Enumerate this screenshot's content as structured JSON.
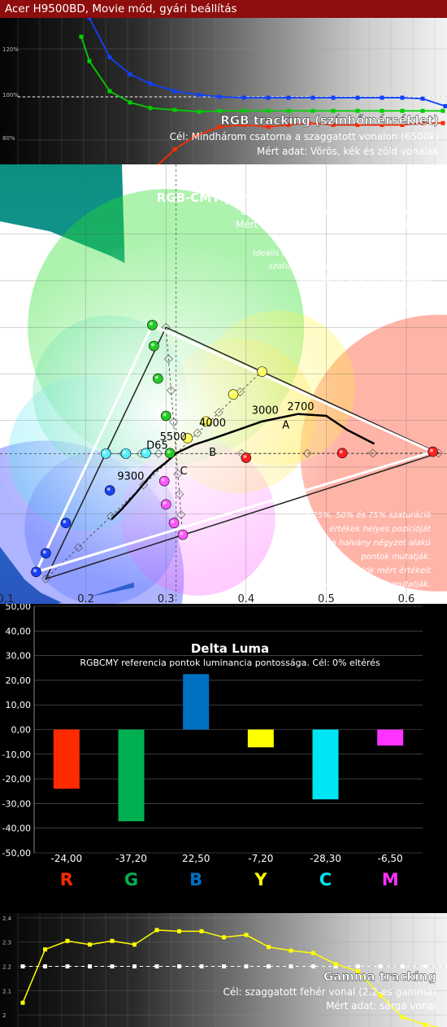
{
  "header": {
    "title": "Acer H9500BD, Movie mód, gyári beállítás"
  },
  "colors": {
    "red": "#ff2a00",
    "green": "#00b050",
    "blue": "#0070c0",
    "yellow": "#ffff00",
    "cyan": "#00e5f5",
    "magenta": "#ff33ff",
    "header_bg": "#8e0d0d"
  },
  "rgb_tracking": {
    "title": "RGB tracking (színhőmérséklet)",
    "line1": "Cél: Mindhárom csatorna a szaggatott vonalon (6500k)",
    "line2": "Mért adat: Vörös, kék és zöld vonalak",
    "y_ticks": [
      "120%",
      "100%",
      "80%"
    ],
    "chart_data": {
      "type": "line",
      "ylim": [
        72,
        150
      ],
      "target": 100,
      "series": [
        {
          "name": "Vörös",
          "color": "#ff2a00",
          "points": [
            [
              190,
              70
            ],
            [
              215,
              80
            ],
            [
              240,
              87
            ],
            [
              270,
              92
            ],
            [
              300,
              93
            ],
            [
              330,
              92
            ],
            [
              355,
              93
            ],
            [
              380,
              94
            ],
            [
              410,
              93
            ],
            [
              440,
              93
            ],
            [
              470,
              93
            ],
            [
              495,
              93
            ],
            [
              520,
              94
            ],
            [
              545,
              94
            ]
          ]
        },
        {
          "name": "Zöld",
          "color": "#00d000",
          "points": [
            [
              100,
              140
            ],
            [
              110,
              127
            ],
            [
              135,
              111
            ],
            [
              160,
              105
            ],
            [
              185,
              102
            ],
            [
              215,
              101
            ],
            [
              245,
              100
            ],
            [
              270,
              100.5
            ],
            [
              300,
              100.5
            ],
            [
              330,
              100.5
            ],
            [
              355,
              100.5
            ],
            [
              385,
              100.5
            ],
            [
              410,
              100.5
            ],
            [
              440,
              100.5
            ],
            [
              470,
              100.5
            ],
            [
              495,
              100.5
            ],
            [
              520,
              100.5
            ],
            [
              545,
              100.5
            ]
          ]
        },
        {
          "name": "Kék",
          "color": "#1040ff",
          "points": [
            [
              110,
              150
            ],
            [
              135,
              129
            ],
            [
              160,
              120
            ],
            [
              185,
              115
            ],
            [
              215,
              111
            ],
            [
              245,
              109
            ],
            [
              270,
              108
            ],
            [
              300,
              107.5
            ],
            [
              330,
              107.5
            ],
            [
              355,
              107.5
            ],
            [
              385,
              107.5
            ],
            [
              410,
              107.5
            ],
            [
              440,
              107.5
            ],
            [
              470,
              107.5
            ],
            [
              495,
              107.5
            ],
            [
              520,
              107
            ],
            [
              548,
              103
            ]
          ]
        }
      ]
    }
  },
  "cie": {
    "title": "RGB-CMY pontosság REC.709-hez képest",
    "line1": "Cél: fekete háromszög (négyzet pontok)",
    "line2": "Mért adat: Fehér háromszög (kör pontok)",
    "note_top": [
      "Ideális esetben az RGBCMY csatornák 100%",
      "szaturációjú értékei a fekete háromszög",
      "csúcsán  és a háromszög oldalán",
      "a meghatározott pontokban",
      "helyezkednek el."
    ],
    "note_bottom": [
      "A 25%, 50% és 75% szaturáció",
      "értékek helyes pozícióját",
      "a halvány négyzet alakú",
      "pontok mutatják.",
      "A köztes szaturációk mért értékeit",
      "a kör alakú pontok mutatják."
    ],
    "x_ticks": [
      "0.1",
      "0.2",
      "0.3",
      "0.4",
      "0.5",
      "0.6"
    ],
    "chart_data": {
      "type": "scatter",
      "xlim": [
        0.1,
        0.65
      ],
      "ylim": [
        0.01,
        0.85
      ],
      "target_triangle": [
        [
          0.64,
          0.33
        ],
        [
          0.3,
          0.6
        ],
        [
          0.15,
          0.06
        ]
      ],
      "measured_triangle": [
        [
          0.633,
          0.333
        ],
        [
          0.283,
          0.605
        ],
        [
          0.138,
          0.075
        ]
      ],
      "white_point": [
        0.3127,
        0.329
      ],
      "planck_labels": [
        {
          "label": "2700",
          "x": 0.46,
          "y": 0.415
        },
        {
          "label": "3000",
          "x": 0.436,
          "y": 0.404
        },
        {
          "label": "4000",
          "x": 0.381,
          "y": 0.377
        },
        {
          "label": "5500",
          "x": 0.332,
          "y": 0.347
        },
        {
          "label": "D65",
          "x": 0.3127,
          "y": 0.329
        },
        {
          "label": "9300",
          "x": 0.283,
          "y": 0.297
        },
        {
          "label": "A",
          "x": 0.4476,
          "y": 0.4074
        },
        {
          "label": "B",
          "x": 0.348,
          "y": 0.352
        },
        {
          "label": "C",
          "x": 0.31,
          "y": 0.316
        }
      ],
      "measured_points": [
        {
          "color": "#ff2020",
          "points": [
            [
              0.633,
              0.333
            ],
            [
              0.52,
              0.33
            ],
            [
              0.4,
              0.32
            ]
          ]
        },
        {
          "color": "#22cc22",
          "points": [
            [
              0.283,
              0.605
            ],
            [
              0.285,
              0.56
            ],
            [
              0.29,
              0.49
            ],
            [
              0.3,
              0.41
            ],
            [
              0.305,
              0.33
            ]
          ]
        },
        {
          "color": "#1a40ff",
          "points": [
            [
              0.138,
              0.075
            ],
            [
              0.15,
              0.115
            ],
            [
              0.175,
              0.18
            ],
            [
              0.23,
              0.25
            ]
          ]
        },
        {
          "color": "#ffff55",
          "points": [
            [
              0.42,
              0.505
            ],
            [
              0.384,
              0.456
            ],
            [
              0.35,
              0.398
            ],
            [
              0.327,
              0.362
            ]
          ]
        },
        {
          "color": "#55f0ff",
          "points": [
            [
              0.225,
              0.329
            ],
            [
              0.25,
              0.329
            ],
            [
              0.275,
              0.33
            ]
          ]
        },
        {
          "color": "#ff55ff",
          "points": [
            [
              0.321,
              0.155
            ],
            [
              0.31,
              0.18
            ],
            [
              0.3,
              0.22
            ],
            [
              0.298,
              0.27
            ]
          ]
        }
      ]
    }
  },
  "delta_luma": {
    "title": "Delta Luma",
    "subtitle": "RGBCMY referencia pontok luminancia pontossága. Cél: 0% eltérés",
    "y_ticks": [
      "50,00",
      "40,00",
      "30,00",
      "20,00",
      "10,00",
      "0,00",
      "-10,00",
      "-20,00",
      "-30,00",
      "-40,00",
      "-50,00"
    ],
    "chart_data": {
      "type": "bar",
      "categories": [
        "R",
        "G",
        "B",
        "Y",
        "C",
        "M"
      ],
      "values": [
        -24.0,
        -37.2,
        22.5,
        -7.2,
        -28.3,
        -6.5
      ],
      "value_labels": [
        "-24,00",
        "-37,20",
        "22,50",
        "-7,20",
        "-28,30",
        "-6,50"
      ],
      "colors": [
        "#ff2a00",
        "#00b050",
        "#0070c0",
        "#ffff00",
        "#00e5f5",
        "#ff33ff"
      ],
      "ylim": [
        -50,
        50
      ]
    }
  },
  "gamma": {
    "title": "Gamma tracking",
    "line1": "Cél: szaggatott fehér vonal (2.2-es gamma)",
    "line2": "Mért adat: sárga vonal",
    "y_ticks": [
      "2.4",
      "2.3",
      "2.2",
      "2.1",
      "2"
    ],
    "chart_data": {
      "type": "line",
      "ylim": [
        1.95,
        2.42
      ],
      "target": 2.2,
      "series": [
        {
          "name": "Gamma",
          "color": "#ffff00",
          "values": [
            2.05,
            2.27,
            2.305,
            2.29,
            2.305,
            2.29,
            2.35,
            2.345,
            2.345,
            2.32,
            2.33,
            2.28,
            2.265,
            2.255,
            2.21,
            2.18,
            2.08,
            1.99,
            1.96,
            1.94
          ]
        }
      ]
    }
  }
}
